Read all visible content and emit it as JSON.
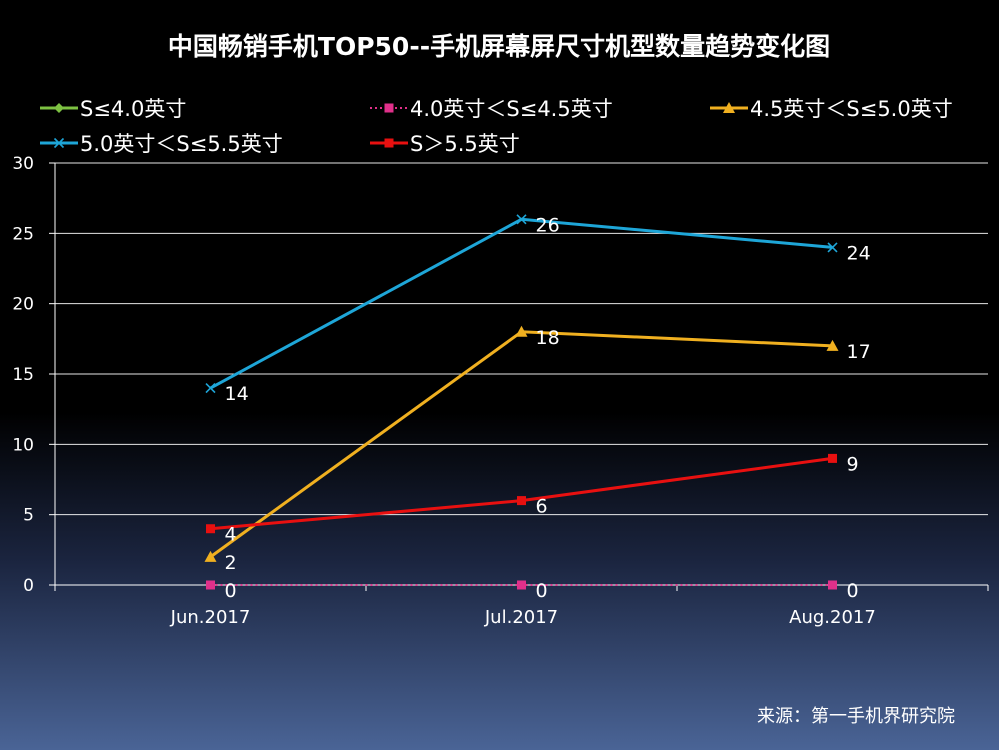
{
  "chart_data": {
    "type": "line",
    "title": "中国畅销手机TOP50--手机屏幕屏尺寸机型数量趋势变化图",
    "categories": [
      "Jun.2017",
      "Jul.2017",
      "Aug.2017"
    ],
    "ylim": [
      0,
      30
    ],
    "yticks": [
      0,
      5,
      10,
      15,
      20,
      25,
      30
    ],
    "grid": true,
    "legend_position": "top",
    "series": [
      {
        "name": "S≤4.0英寸",
        "values": [
          null,
          null,
          null
        ],
        "color": "#7dc142",
        "marker": "diamond",
        "dash": false,
        "labels": [
          "",
          "",
          ""
        ]
      },
      {
        "name": "4.0英寸＜S≤4.5英寸",
        "values": [
          0,
          0,
          0
        ],
        "color": "#e0308a",
        "marker": "square",
        "dash": true,
        "labels": [
          "0",
          "0",
          "0"
        ]
      },
      {
        "name": "4.5英寸＜S≤5.0英寸",
        "values": [
          2,
          18,
          17
        ],
        "color": "#f0b020",
        "marker": "triangle",
        "dash": false,
        "labels": [
          "2",
          "18",
          "17"
        ]
      },
      {
        "name": "5.0英寸＜S≤5.5英寸",
        "values": [
          14,
          26,
          24
        ],
        "color": "#1ea6d8",
        "marker": "x",
        "dash": false,
        "labels": [
          "14",
          "26",
          "24"
        ]
      },
      {
        "name": "S＞5.5英寸",
        "values": [
          4,
          6,
          9
        ],
        "color": "#e81010",
        "marker": "square",
        "dash": false,
        "labels": [
          "4",
          "6",
          "9"
        ]
      }
    ],
    "source": "来源：第一手机界研究院"
  }
}
